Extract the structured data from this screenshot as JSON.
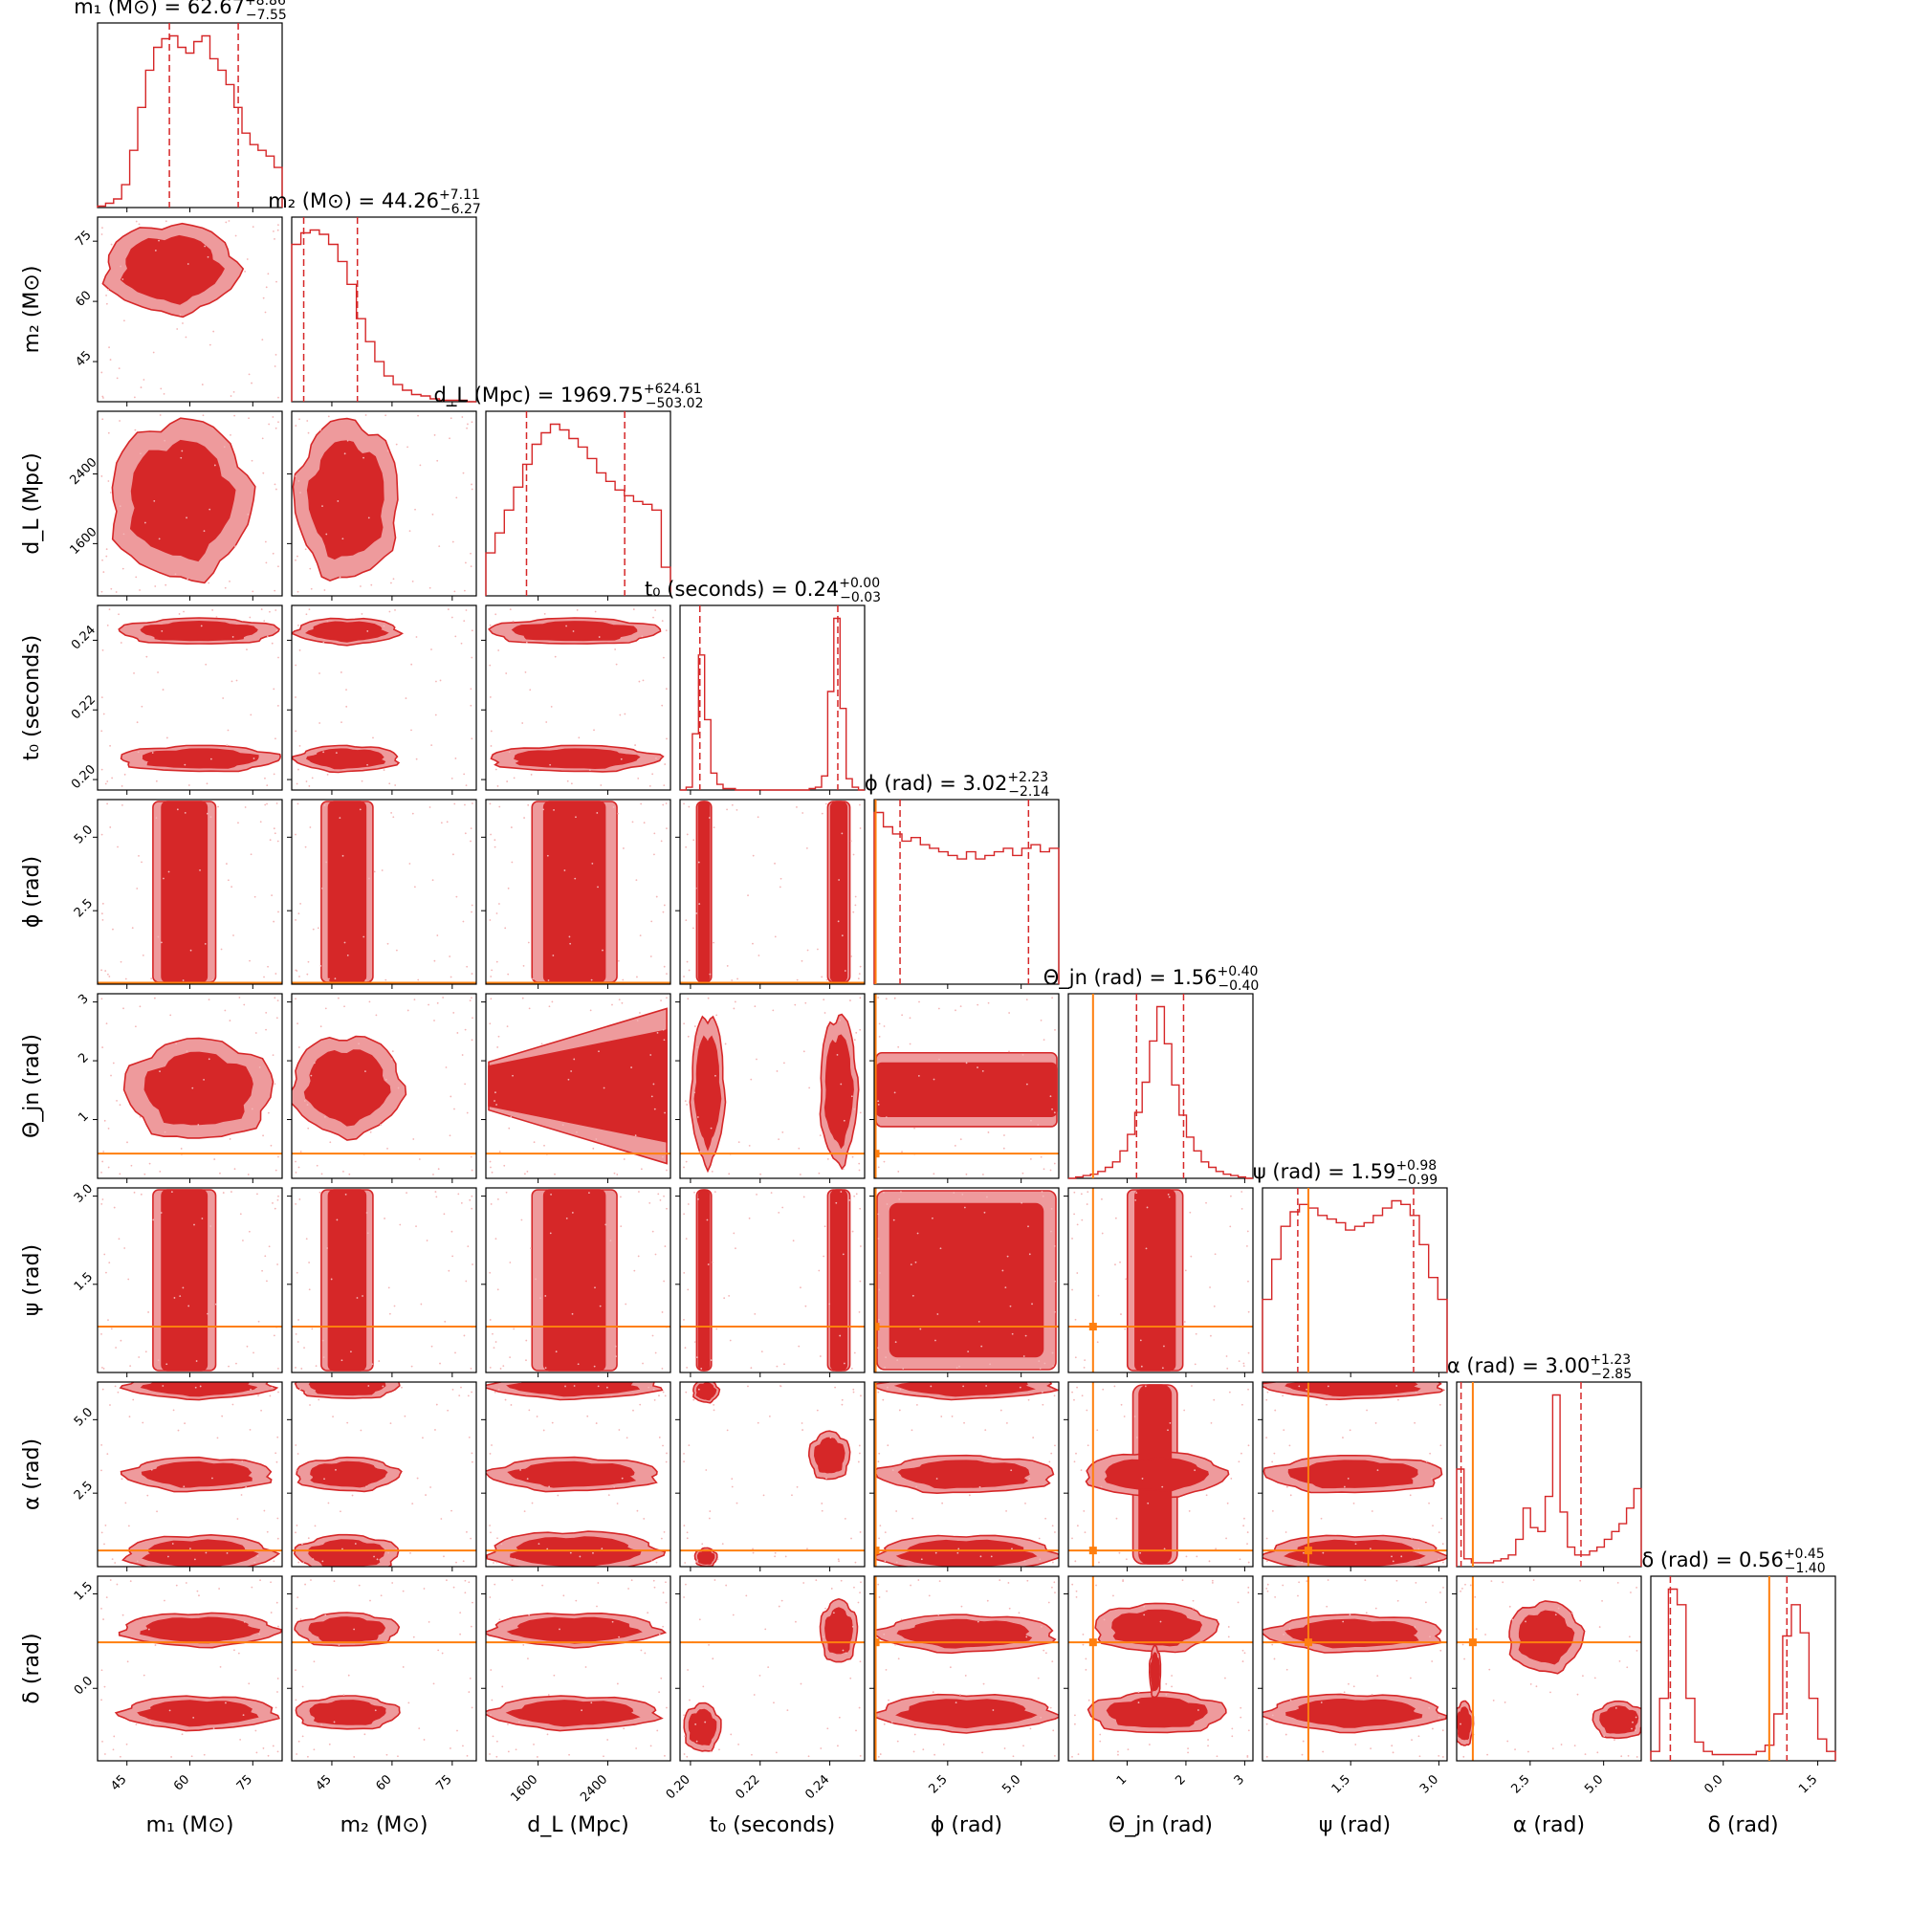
{
  "chart_data": {
    "type": "corner",
    "params": [
      {
        "key": "m1",
        "label": "m₁ (M⊙)",
        "title": "m₁ (M⊙) = 62.67",
        "median": "62.67",
        "err_plus": "+8.86",
        "err_minus": "−7.55",
        "range": [
          38,
          82
        ],
        "ticks": [
          45,
          60,
          75
        ],
        "tick_labels": [
          "45",
          "60",
          "75"
        ],
        "q_lo": 55.12,
        "q_hi": 71.53,
        "truth": null,
        "hist": [
          1,
          3,
          6,
          16,
          40,
          70,
          96,
          112,
          118,
          120,
          112,
          108,
          116,
          120,
          104,
          96,
          86,
          70,
          52,
          44,
          40,
          36,
          28
        ]
      },
      {
        "key": "m2",
        "label": "m₂ (M⊙)",
        "title": "m₂ (M⊙) = 44.26",
        "median": "44.26",
        "err_plus": "+7.11",
        "err_minus": "−6.27",
        "range": [
          35,
          81
        ],
        "ticks": [
          45,
          60,
          75
        ],
        "tick_labels": [
          "45",
          "60",
          "75"
        ],
        "q_lo": 37.99,
        "q_hi": 51.37,
        "truth": null,
        "hist": [
          110,
          118,
          120,
          117,
          110,
          98,
          82,
          58,
          42,
          28,
          18,
          12,
          8,
          5,
          4,
          2,
          1,
          1,
          1,
          0
        ]
      },
      {
        "key": "dL",
        "label": "d_L (Mpc)",
        "title": "d_L (Mpc) = 1969.75",
        "median": "1969.75",
        "err_plus": "+624.61",
        "err_minus": "−503.02",
        "range": [
          1000,
          3120
        ],
        "ticks": [
          1600,
          2400
        ],
        "tick_labels": [
          "1600",
          "2400"
        ],
        "q_lo": 1466.73,
        "q_hi": 2594.36,
        "truth": null,
        "hist": [
          30,
          44,
          60,
          76,
          92,
          106,
          114,
          120,
          116,
          110,
          104,
          96,
          86,
          80,
          74,
          70,
          66,
          64,
          60,
          20
        ]
      },
      {
        "key": "t0",
        "label": "t₀ (seconds)",
        "title": "t₀ (seconds) = 0.24",
        "median": "0.24",
        "err_plus": "+0.00",
        "err_minus": "−0.03",
        "range": [
          0.197,
          0.25
        ],
        "ticks": [
          0.2,
          0.22,
          0.24
        ],
        "tick_labels": [
          "0.20",
          "0.22",
          "0.24"
        ],
        "q_lo": 0.2027,
        "q_hi": 0.2423,
        "truth": null,
        "hist": [
          0,
          2,
          40,
          96,
          50,
          12,
          4,
          1,
          1,
          0,
          0,
          0,
          0,
          0,
          0,
          0,
          0,
          0,
          0,
          0,
          0,
          1,
          2,
          10,
          70,
          122,
          58,
          8,
          2,
          0
        ]
      },
      {
        "key": "phi",
        "label": "ϕ (rad)",
        "title": "ϕ (rad) = 3.02",
        "median": "3.02",
        "err_plus": "+2.23",
        "err_minus": "−2.14",
        "range": [
          0,
          6.28
        ],
        "ticks": [
          2.5,
          5.0
        ],
        "tick_labels": [
          "2.5",
          "5.0"
        ],
        "q_lo": 0.88,
        "q_hi": 5.25,
        "truth": 0.05,
        "hist": [
          96,
          88,
          84,
          80,
          82,
          78,
          76,
          74,
          72,
          70,
          74,
          70,
          72,
          74,
          76,
          72,
          76,
          78,
          74,
          76
        ]
      },
      {
        "key": "theta_jn",
        "label": "Θ_jn (rad)",
        "title": "Θ_jn (rad) = 1.56",
        "median": "1.56",
        "err_plus": "+0.40",
        "err_minus": "−0.40",
        "range": [
          0,
          3.14
        ],
        "ticks": [
          1,
          2,
          3
        ],
        "tick_labels": [
          "1",
          "2",
          "3"
        ],
        "q_lo": 1.16,
        "q_hi": 1.96,
        "truth": 0.42,
        "hist": [
          0,
          1,
          2,
          3,
          5,
          8,
          12,
          20,
          32,
          48,
          70,
          100,
          125,
          98,
          68,
          46,
          30,
          20,
          12,
          8,
          5,
          3,
          2,
          1,
          0
        ]
      },
      {
        "key": "psi",
        "label": "ψ (rad)",
        "title": "ψ (rad) = 1.59",
        "median": "1.59",
        "err_plus": "+0.98",
        "err_minus": "−0.99",
        "range": [
          0,
          3.14
        ],
        "ticks": [
          1.5,
          3.0
        ],
        "tick_labels": [
          "1.5",
          "3.0"
        ],
        "q_lo": 0.6,
        "q_hi": 2.57,
        "truth": 0.78,
        "hist": [
          40,
          62,
          80,
          88,
          92,
          90,
          86,
          84,
          82,
          78,
          80,
          82,
          86,
          90,
          94,
          92,
          86,
          70,
          52,
          40
        ]
      },
      {
        "key": "alpha",
        "label": "α (rad)",
        "title": "α (rad) = 3.00",
        "median": "3.00",
        "err_plus": "+1.23",
        "err_minus": "−2.85",
        "range": [
          0,
          6.28
        ],
        "ticks": [
          2.5,
          5.0
        ],
        "tick_labels": [
          "2.5",
          "5.0"
        ],
        "q_lo": 0.15,
        "q_hi": 4.23,
        "truth": 0.55,
        "hist": [
          50,
          4,
          2,
          2,
          2,
          3,
          4,
          6,
          14,
          30,
          20,
          18,
          36,
          88,
          28,
          10,
          6,
          6,
          8,
          10,
          14,
          18,
          22,
          30,
          40
        ]
      },
      {
        "key": "delta",
        "label": "δ (rad)",
        "title": "δ (rad) = 0.56",
        "median": "0.56",
        "err_plus": "+0.45",
        "err_minus": "−1.40",
        "range": [
          -1.15,
          1.78
        ],
        "ticks": [
          0.0,
          1.5
        ],
        "tick_labels": [
          "0.0",
          "1.5"
        ],
        "q_lo": -0.84,
        "q_hi": 1.01,
        "truth": 0.73,
        "hist": [
          6,
          40,
          110,
          100,
          40,
          12,
          6,
          4,
          4,
          4,
          4,
          4,
          6,
          10,
          30,
          80,
          100,
          82,
          40,
          14,
          6
        ]
      }
    ],
    "pair_shapes": {
      "1-0": {
        "kind": "blob",
        "cx": 0.4,
        "cy": 0.28,
        "rx": 0.36,
        "ry": 0.24
      },
      "2-0": {
        "kind": "blob",
        "cx": 0.45,
        "cy": 0.48,
        "rx": 0.38,
        "ry": 0.43
      },
      "3-0": {
        "kind": "multi",
        "items": [
          {
            "cx": 0.55,
            "cy": 0.83,
            "rx": 0.43,
            "ry": 0.07
          },
          {
            "cx": 0.55,
            "cy": 0.14,
            "rx": 0.43,
            "ry": 0.07
          }
        ]
      },
      "4-0": {
        "kind": "band_v",
        "cx": 0.47,
        "w": 0.34
      },
      "5-0": {
        "kind": "blob",
        "cx": 0.55,
        "cy": 0.52,
        "rx": 0.4,
        "ry": 0.27
      },
      "6-0": {
        "kind": "band_v",
        "cx": 0.47,
        "w": 0.34
      },
      "7-0": {
        "kind": "multi",
        "items": [
          {
            "cx": 0.55,
            "cy": 0.5,
            "rx": 0.4,
            "ry": 0.09
          },
          {
            "cx": 0.55,
            "cy": 0.02,
            "rx": 0.4,
            "ry": 0.07
          },
          {
            "cx": 0.55,
            "cy": 0.93,
            "rx": 0.4,
            "ry": 0.1
          }
        ]
      },
      "8-0": {
        "kind": "multi",
        "items": [
          {
            "cx": 0.55,
            "cy": 0.74,
            "rx": 0.42,
            "ry": 0.09
          },
          {
            "cx": 0.55,
            "cy": 0.29,
            "rx": 0.42,
            "ry": 0.09
          }
        ]
      },
      "2-1": {
        "kind": "blob",
        "cx": 0.3,
        "cy": 0.48,
        "rx": 0.28,
        "ry": 0.43
      },
      "3-1": {
        "kind": "multi",
        "items": [
          {
            "cx": 0.3,
            "cy": 0.83,
            "rx": 0.28,
            "ry": 0.07
          },
          {
            "cx": 0.3,
            "cy": 0.14,
            "rx": 0.28,
            "ry": 0.07
          }
        ]
      },
      "4-1": {
        "kind": "band_v",
        "cx": 0.3,
        "w": 0.28
      },
      "5-1": {
        "kind": "blob",
        "cx": 0.3,
        "cy": 0.5,
        "rx": 0.3,
        "ry": 0.27
      },
      "6-1": {
        "kind": "band_v",
        "cx": 0.3,
        "w": 0.28
      },
      "7-1": {
        "kind": "multi",
        "items": [
          {
            "cx": 0.3,
            "cy": 0.5,
            "rx": 0.28,
            "ry": 0.09
          },
          {
            "cx": 0.3,
            "cy": 0.02,
            "rx": 0.28,
            "ry": 0.07
          },
          {
            "cx": 0.3,
            "cy": 0.93,
            "rx": 0.28,
            "ry": 0.1
          }
        ]
      },
      "8-1": {
        "kind": "multi",
        "items": [
          {
            "cx": 0.3,
            "cy": 0.74,
            "rx": 0.28,
            "ry": 0.09
          },
          {
            "cx": 0.3,
            "cy": 0.29,
            "rx": 0.28,
            "ry": 0.09
          }
        ]
      },
      "3-2": {
        "kind": "multi",
        "items": [
          {
            "cx": 0.48,
            "cy": 0.83,
            "rx": 0.46,
            "ry": 0.07
          },
          {
            "cx": 0.48,
            "cy": 0.14,
            "rx": 0.46,
            "ry": 0.07
          }
        ]
      },
      "4-2": {
        "kind": "band_v",
        "cx": 0.48,
        "w": 0.46
      },
      "5-2": {
        "kind": "tri"
      },
      "6-2": {
        "kind": "band_v",
        "cx": 0.48,
        "w": 0.46
      },
      "7-2": {
        "kind": "multi",
        "items": [
          {
            "cx": 0.48,
            "cy": 0.5,
            "rx": 0.46,
            "ry": 0.09
          },
          {
            "cx": 0.48,
            "cy": 0.02,
            "rx": 0.46,
            "ry": 0.07
          },
          {
            "cx": 0.48,
            "cy": 0.92,
            "rx": 0.46,
            "ry": 0.11
          }
        ]
      },
      "8-2": {
        "kind": "multi",
        "items": [
          {
            "cx": 0.48,
            "cy": 0.74,
            "rx": 0.46,
            "ry": 0.09
          },
          {
            "cx": 0.48,
            "cy": 0.29,
            "rx": 0.46,
            "ry": 0.09
          }
        ]
      },
      "4-3": {
        "kind": "multi_v",
        "items": [
          {
            "cx": 0.13,
            "w": 0.08
          },
          {
            "cx": 0.86,
            "w": 0.12
          }
        ]
      },
      "5-3": {
        "kind": "multi",
        "items": [
          {
            "cx": 0.15,
            "cy": 0.52,
            "rx": 0.09,
            "ry": 0.4
          },
          {
            "cx": 0.86,
            "cy": 0.52,
            "rx": 0.1,
            "ry": 0.4
          }
        ]
      },
      "6-3": {
        "kind": "multi_v",
        "items": [
          {
            "cx": 0.13,
            "w": 0.08
          },
          {
            "cx": 0.86,
            "w": 0.12
          }
        ]
      },
      "7-3": {
        "kind": "multi",
        "items": [
          {
            "cx": 0.14,
            "cy": 0.05,
            "rx": 0.07,
            "ry": 0.06
          },
          {
            "cx": 0.14,
            "cy": 0.95,
            "rx": 0.06,
            "ry": 0.05
          },
          {
            "cx": 0.81,
            "cy": 0.4,
            "rx": 0.11,
            "ry": 0.13
          }
        ]
      },
      "8-3": {
        "kind": "multi",
        "items": [
          {
            "cx": 0.12,
            "cy": 0.82,
            "rx": 0.1,
            "ry": 0.13
          },
          {
            "cx": 0.86,
            "cy": 0.3,
            "rx": 0.1,
            "ry": 0.17
          }
        ]
      },
      "5-4": {
        "kind": "band_h",
        "cy": 0.52,
        "h": 0.4
      },
      "6-4": {
        "kind": "full"
      },
      "7-4": {
        "kind": "multi",
        "items": [
          {
            "cx": 0.5,
            "cy": 0.5,
            "rx": 0.48,
            "ry": 0.1
          },
          {
            "cx": 0.5,
            "cy": 0.02,
            "rx": 0.48,
            "ry": 0.07
          },
          {
            "cx": 0.5,
            "cy": 0.93,
            "rx": 0.48,
            "ry": 0.1
          }
        ]
      },
      "8-4": {
        "kind": "multi",
        "items": [
          {
            "cx": 0.5,
            "cy": 0.31,
            "rx": 0.48,
            "ry": 0.1
          },
          {
            "cx": 0.5,
            "cy": 0.74,
            "rx": 0.48,
            "ry": 0.1
          }
        ]
      },
      "6-5": {
        "kind": "band_v",
        "cx": 0.47,
        "w": 0.3
      },
      "7-5": {
        "kind": "cross",
        "cx": 0.47,
        "cy": 0.5
      },
      "8-5": {
        "kind": "multi",
        "items": [
          {
            "cx": 0.47,
            "cy": 0.28,
            "rx": 0.33,
            "ry": 0.13
          },
          {
            "cx": 0.48,
            "cy": 0.74,
            "rx": 0.37,
            "ry": 0.11
          },
          {
            "cx": 0.47,
            "cy": 0.52,
            "rx": 0.03,
            "ry": 0.14
          }
        ]
      },
      "7-6": {
        "kind": "multi",
        "items": [
          {
            "cx": 0.5,
            "cy": 0.5,
            "rx": 0.48,
            "ry": 0.1
          },
          {
            "cx": 0.5,
            "cy": 0.02,
            "rx": 0.48,
            "ry": 0.07
          },
          {
            "cx": 0.5,
            "cy": 0.93,
            "rx": 0.48,
            "ry": 0.1
          }
        ]
      },
      "8-6": {
        "kind": "multi",
        "items": [
          {
            "cx": 0.5,
            "cy": 0.31,
            "rx": 0.48,
            "ry": 0.1
          },
          {
            "cx": 0.5,
            "cy": 0.74,
            "rx": 0.48,
            "ry": 0.1
          }
        ]
      },
      "8-7": {
        "kind": "multi",
        "items": [
          {
            "cx": 0.48,
            "cy": 0.33,
            "rx": 0.2,
            "ry": 0.19
          },
          {
            "cx": 0.04,
            "cy": 0.8,
            "rx": 0.05,
            "ry": 0.12
          },
          {
            "cx": 0.88,
            "cy": 0.78,
            "rx": 0.14,
            "ry": 0.1
          }
        ]
      }
    }
  }
}
